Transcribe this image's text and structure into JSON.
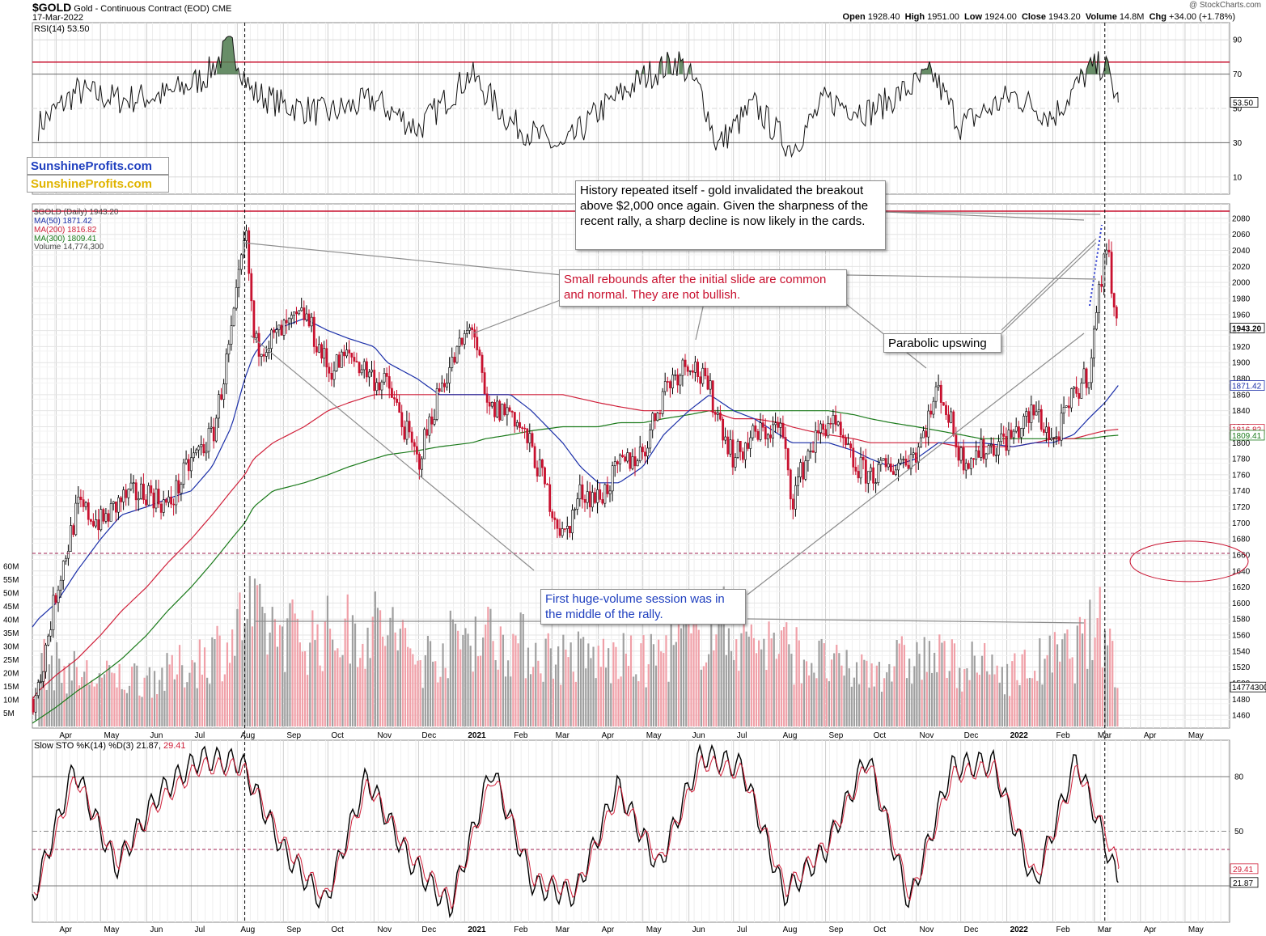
{
  "header": {
    "symbol": "$GOLD",
    "name": "Gold - Continuous Contract (EOD)",
    "exchange": "CME",
    "date": "17-Mar-2022",
    "copyright": "@ StockCharts.com",
    "open_label": "Open",
    "open": "1928.40",
    "high_label": "High",
    "high": "1951.00",
    "low_label": "Low",
    "low": "1924.00",
    "close_label": "Close",
    "close": "1943.20",
    "volume_label": "Volume",
    "volume": "14.8M",
    "chg_label": "Chg",
    "chg": "+34.00 (+1.78%)"
  },
  "brand": {
    "line1": "SunshineProfits.com",
    "line2": "SunshineProfits.com",
    "color1": "#1f3fbf",
    "color2": "#e0b400"
  },
  "legend": {
    "rsi": "RSI(14) 53.50",
    "price": "$GOLD (Daily) 1943.20",
    "ma50": "MA(50) 1871.42",
    "ma200": "MA(200) 1816.82",
    "ma300": "MA(300) 1809.41",
    "volume": "Volume 14,774,300",
    "sto": "Slow STO %K(14) %D(3) 21.87,",
    "sto_d": "29.41"
  },
  "callouts": {
    "history": "History repeated itself - gold invalidated the breakout above $2,000 once again. Given the sharpness of the recent rally, a sharp decline is now likely in the cards.",
    "rebounds": "Small rebounds after the initial slide are common and normal. They are not bullish.",
    "parabolic": "Parabolic upswing",
    "volume_note": "First huge-volume session was in the middle of the rally."
  },
  "colors": {
    "up": "#000000",
    "down": "#c8102e",
    "ma50": "#1a2ea8",
    "ma200": "#d0203a",
    "ma300": "#1a7a1a",
    "resistance": "#c8102e",
    "vol_up": "#a0a0a0",
    "vol_down": "#f0a0a8",
    "rsi_fill": "#4d7a4d",
    "sto_k": "#000000",
    "sto_d": "#d0203a",
    "annot_red": "#c8102e",
    "annot_blue": "#1f3fbf"
  },
  "chart_data": [
    {
      "type": "line",
      "panel": "RSI",
      "title": "RSI(14) 53.50",
      "ylim": [
        0,
        100
      ],
      "yticks": [
        10,
        30,
        50,
        70,
        90
      ],
      "overbought": 70,
      "oversold": 30,
      "highlight_level": 77,
      "last_value": 53.5,
      "x": [
        "2020-03-20",
        "2020-04-15",
        "2020-05-15",
        "2020-06-15",
        "2020-07-10",
        "2020-07-28",
        "2020-08-10",
        "2020-09-01",
        "2020-10-01",
        "2020-11-01",
        "2020-12-01",
        "2021-01-05",
        "2021-02-01",
        "2021-03-08",
        "2021-04-01",
        "2021-05-01",
        "2021-05-25",
        "2021-06-10",
        "2021-06-20",
        "2021-07-15",
        "2021-08-09",
        "2021-09-01",
        "2021-10-01",
        "2021-11-12",
        "2021-12-01",
        "2022-01-05",
        "2022-02-01",
        "2022-02-25",
        "2022-03-08",
        "2022-03-17"
      ],
      "values": [
        40,
        60,
        55,
        58,
        68,
        88,
        60,
        52,
        47,
        55,
        38,
        70,
        42,
        26,
        48,
        68,
        78,
        58,
        28,
        52,
        26,
        55,
        48,
        70,
        40,
        58,
        45,
        72,
        76,
        53.5
      ]
    },
    {
      "type": "candlestick",
      "panel": "Price",
      "title": "$GOLD (Daily) 1943.20",
      "ylim": [
        1450,
        2090
      ],
      "yticks": [
        1460,
        1480,
        1500,
        1520,
        1540,
        1560,
        1580,
        1600,
        1620,
        1640,
        1660,
        1680,
        1700,
        1720,
        1740,
        1760,
        1780,
        1800,
        1820,
        1840,
        1860,
        1880,
        1900,
        1920,
        1940,
        1960,
        1980,
        2000,
        2020,
        2040,
        2060,
        2080
      ],
      "xticks": [
        "Apr",
        "May",
        "Jun",
        "Jul",
        "Aug",
        "Sep",
        "Oct",
        "Nov",
        "Dec",
        "2021",
        "Feb",
        "Mar",
        "Apr",
        "May",
        "Jun",
        "Jul",
        "Aug",
        "Sep",
        "Oct",
        "Nov",
        "Dec",
        "2022",
        "Feb",
        "Mar",
        "Apr",
        "May"
      ],
      "resistance": 2089,
      "support": 1662,
      "last_labels": {
        "close": "1943.20",
        "ma50": "1871.42",
        "ma200": "1816.82",
        "ma300": "1809.41"
      },
      "x": [
        "2020-03-16",
        "2020-03-20",
        "2020-04-01",
        "2020-04-15",
        "2020-05-01",
        "2020-05-15",
        "2020-06-01",
        "2020-06-15",
        "2020-07-01",
        "2020-07-15",
        "2020-07-28",
        "2020-08-06",
        "2020-08-12",
        "2020-08-25",
        "2020-09-15",
        "2020-10-01",
        "2020-10-15",
        "2020-11-01",
        "2020-11-10",
        "2020-11-30",
        "2020-12-15",
        "2021-01-06",
        "2021-01-15",
        "2021-02-01",
        "2021-02-15",
        "2021-03-08",
        "2021-03-20",
        "2021-04-01",
        "2021-04-15",
        "2021-05-01",
        "2021-05-15",
        "2021-06-01",
        "2021-06-15",
        "2021-07-01",
        "2021-07-15",
        "2021-08-01",
        "2021-08-09",
        "2021-08-20",
        "2021-09-03",
        "2021-09-20",
        "2021-10-01",
        "2021-10-15",
        "2021-11-01",
        "2021-11-16",
        "2021-12-01",
        "2021-12-15",
        "2022-01-05",
        "2022-01-20",
        "2022-02-01",
        "2022-02-15",
        "2022-02-25",
        "2022-03-08",
        "2022-03-17"
      ],
      "close": [
        1480,
        1500,
        1620,
        1720,
        1700,
        1730,
        1740,
        1720,
        1780,
        1810,
        1940,
        2063,
        1920,
        1930,
        1960,
        1890,
        1910,
        1880,
        1870,
        1775,
        1870,
        1950,
        1840,
        1840,
        1790,
        1680,
        1740,
        1730,
        1770,
        1790,
        1870,
        1905,
        1860,
        1780,
        1810,
        1820,
        1730,
        1790,
        1830,
        1770,
        1760,
        1770,
        1790,
        1870,
        1780,
        1790,
        1810,
        1840,
        1800,
        1860,
        1890,
        2050,
        1943.2
      ],
      "ma50": [
        1570,
        1580,
        1600,
        1640,
        1680,
        1710,
        1720,
        1730,
        1740,
        1770,
        1820,
        1880,
        1910,
        1940,
        1955,
        1940,
        1930,
        1920,
        1900,
        1880,
        1860,
        1860,
        1860,
        1860,
        1840,
        1800,
        1770,
        1750,
        1750,
        1770,
        1810,
        1840,
        1860,
        1840,
        1830,
        1810,
        1800,
        1800,
        1800,
        1790,
        1780,
        1770,
        1780,
        1800,
        1800,
        1800,
        1795,
        1800,
        1800,
        1810,
        1830,
        1850,
        1871.42
      ],
      "ma200": [
        1480,
        1490,
        1510,
        1530,
        1560,
        1590,
        1620,
        1650,
        1680,
        1710,
        1740,
        1760,
        1780,
        1800,
        1820,
        1840,
        1850,
        1860,
        1860,
        1860,
        1860,
        1860,
        1860,
        1860,
        1860,
        1860,
        1855,
        1850,
        1845,
        1840,
        1840,
        1840,
        1840,
        1830,
        1830,
        1825,
        1820,
        1815,
        1810,
        1805,
        1800,
        1800,
        1800,
        1800,
        1795,
        1795,
        1795,
        1800,
        1805,
        1805,
        1810,
        1815,
        1816.82
      ],
      "ma300": [
        1450,
        1455,
        1470,
        1490,
        1510,
        1530,
        1560,
        1590,
        1620,
        1650,
        1680,
        1700,
        1720,
        1740,
        1750,
        1760,
        1770,
        1780,
        1785,
        1790,
        1795,
        1800,
        1805,
        1810,
        1815,
        1820,
        1820,
        1820,
        1825,
        1825,
        1830,
        1835,
        1840,
        1840,
        1840,
        1840,
        1840,
        1840,
        1840,
        1835,
        1830,
        1825,
        1820,
        1815,
        1810,
        1805,
        1805,
        1805,
        1805,
        1805,
        1805,
        1808,
        1809.41
      ]
    },
    {
      "type": "bar",
      "panel": "Volume",
      "title": "Volume 14,774,300",
      "ylim": [
        0,
        63
      ],
      "yticks": [
        "5M",
        "10M",
        "15M",
        "20M",
        "25M",
        "30M",
        "35M",
        "40M",
        "45M",
        "50M",
        "55M",
        "60M"
      ],
      "unit": "M",
      "last_value": 14.77,
      "x": [
        "2020-03-20",
        "2020-05-01",
        "2020-06-15",
        "2020-07-28",
        "2020-08-07",
        "2020-08-13",
        "2020-09-15",
        "2020-11-09",
        "2020-12-01",
        "2021-01-07",
        "2021-03-01",
        "2021-05-01",
        "2021-06-17",
        "2021-08-09",
        "2021-09-15",
        "2021-11-05",
        "2022-01-05",
        "2022-02-15",
        "2022-03-04",
        "2022-03-08",
        "2022-03-17"
      ],
      "values": [
        30,
        22,
        24,
        40,
        55,
        48,
        42,
        47,
        30,
        45,
        33,
        30,
        48,
        35,
        25,
        32,
        25,
        35,
        46,
        50,
        14.77
      ]
    },
    {
      "type": "line",
      "panel": "Slow Stochastic",
      "title": "Slow STO %K(14) %D(3) 21.87, 29.41",
      "ylim": [
        0,
        100
      ],
      "yticks": [
        50,
        80
      ],
      "levels": [
        20,
        40,
        50,
        80
      ],
      "series": [
        {
          "name": "%K(14)",
          "values": [
            12,
            85,
            30,
            70,
            90,
            88,
            40,
            10,
            80,
            35,
            8,
            85,
            20,
            15,
            75,
            30,
            92,
            85,
            15,
            40,
            92,
            10,
            85,
            88,
            20,
            90,
            21.87
          ]
        },
        {
          "name": "%D(3)",
          "values": [
            14,
            80,
            33,
            66,
            86,
            85,
            43,
            13,
            76,
            38,
            11,
            81,
            23,
            18,
            71,
            33,
            88,
            82,
            18,
            43,
            89,
            13,
            81,
            85,
            24,
            85,
            29.41
          ]
        }
      ]
    }
  ]
}
